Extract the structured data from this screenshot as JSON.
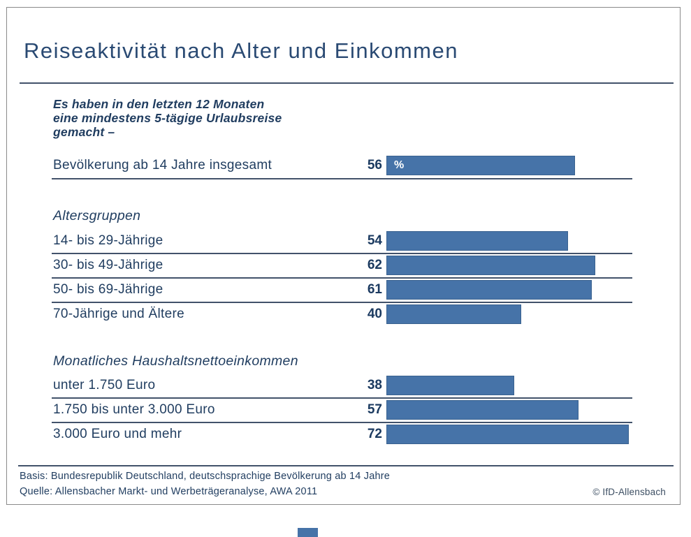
{
  "unit_label": "%",
  "subtitle_lines": [
    "Es haben in den letzten 12 Monaten",
    "eine mindestens 5-tägige Urlaubsreise",
    "gemacht –"
  ],
  "footer": {
    "basis": "Basis: Bundesrepublik Deutschland, deutschsprachige Bevölkerung ab 14 Jahre",
    "quelle": "Quelle: Allensbacher Markt- und Werbeträgeranalyse, AWA 2011",
    "copyright": "© IfD-Allensbach"
  },
  "colors": {
    "bar": "#4673A8",
    "bar_border": "#39618f",
    "title_text": "#2a4a73",
    "body_text": "#1f3c5f",
    "rule_line": "#42526a",
    "card_border": "#8a8a8a"
  },
  "chart_data": {
    "type": "bar",
    "orientation": "horizontal",
    "title": "Reiseaktivität nach Alter und Einkommen",
    "subtitle": "Es haben in den letzten 12 Monaten eine mindestens 5-tägige Urlaubsreise gemacht –",
    "unit": "%",
    "xlim": [
      0,
      75
    ],
    "grid": false,
    "legend": "none",
    "groups": [
      {
        "header": null,
        "rows": [
          {
            "label": "Bevölkerung ab 14 Jahre insgesamt",
            "value": 56
          }
        ]
      },
      {
        "header": "Altersgruppen",
        "rows": [
          {
            "label": "14- bis 29-Jährige",
            "value": 54
          },
          {
            "label": "30- bis 49-Jährige",
            "value": 62
          },
          {
            "label": "50- bis 69-Jährige",
            "value": 61
          },
          {
            "label": "70-Jährige und Ältere",
            "value": 40
          }
        ]
      },
      {
        "header": "Monatliches Haushaltsnettoeinkommen",
        "rows": [
          {
            "label": "unter 1.750 Euro",
            "value": 38
          },
          {
            "label": "1.750 bis unter 3.000 Euro",
            "value": 57
          },
          {
            "label": "3.000 Euro und mehr",
            "value": 72
          }
        ]
      }
    ]
  }
}
